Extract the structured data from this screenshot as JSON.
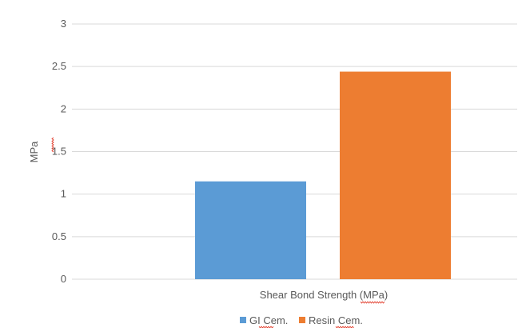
{
  "chart_data": {
    "type": "bar",
    "categories": [
      "Shear Bond Strength (MPa)"
    ],
    "series": [
      {
        "name": "GI Cem.",
        "values": [
          1.15
        ],
        "color": "#5b9bd5"
      },
      {
        "name": "Resin Cem.",
        "values": [
          2.44
        ],
        "color": "#ed7d31"
      }
    ],
    "xlabel": "Shear Bond Strength (MPa)",
    "ylabel": "MPa",
    "ylim": [
      0,
      3
    ],
    "yticks": [
      "0",
      "0.5",
      "1",
      "1.5",
      "2",
      "2.5",
      "3"
    ],
    "grid": true,
    "legend_position": "bottom"
  }
}
